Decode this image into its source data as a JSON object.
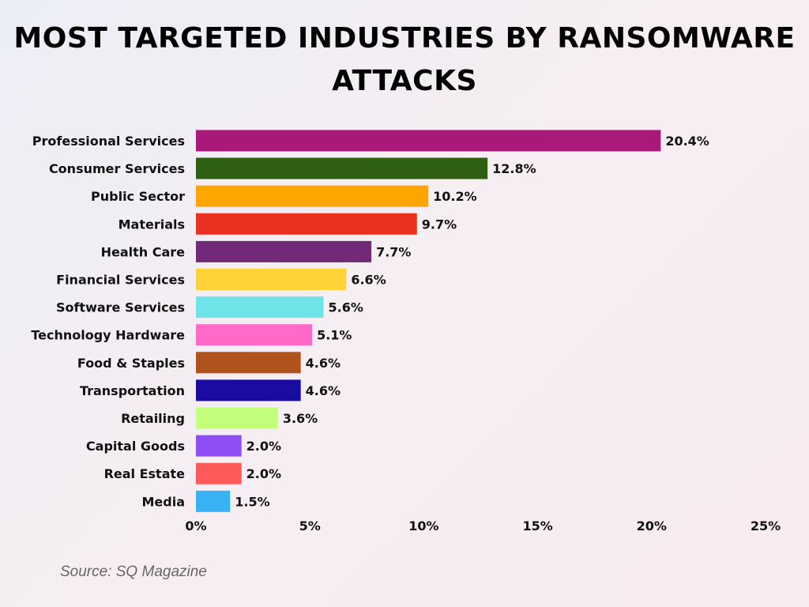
{
  "chart_data": {
    "type": "bar",
    "orientation": "horizontal",
    "title": "MOST TARGETED INDUSTRIES BY RANSOMWARE ATTACKS",
    "categories": [
      "Professional Services",
      "Consumer Services",
      "Public Sector",
      "Materials",
      "Health Care",
      "Financial Services",
      "Software Services",
      "Technology Hardware",
      "Food & Staples",
      "Transportation",
      "Retailing",
      "Capital Goods",
      "Real Estate",
      "Media"
    ],
    "values": [
      20.4,
      12.8,
      10.2,
      9.7,
      7.7,
      6.6,
      5.6,
      5.1,
      4.6,
      4.6,
      3.6,
      2.0,
      2.0,
      1.5
    ],
    "data_labels": [
      "20.4%",
      "12.8%",
      "10.2%",
      "9.7%",
      "7.7%",
      "6.6%",
      "5.6%",
      "5.1%",
      "4.6%",
      "4.6%",
      "3.6%",
      "2.0%",
      "2.0%",
      "1.5%"
    ],
    "colors": [
      "#a8197a",
      "#2f5f12",
      "#ffa500",
      "#e8321f",
      "#722a77",
      "#ffd338",
      "#6ee3e8",
      "#ff6ac8",
      "#b0521b",
      "#1a0ca0",
      "#c2ff7a",
      "#8f4ff5",
      "#ff5a5a",
      "#38b2f5"
    ],
    "xlim": [
      0,
      25
    ],
    "x_ticks": [
      0,
      5,
      10,
      15,
      20,
      25
    ],
    "x_tick_labels": [
      "0%",
      "5%",
      "10%",
      "15%",
      "20%",
      "25%"
    ],
    "xlabel": "",
    "ylabel": "",
    "grid": false
  },
  "source": "Source: SQ Magazine"
}
